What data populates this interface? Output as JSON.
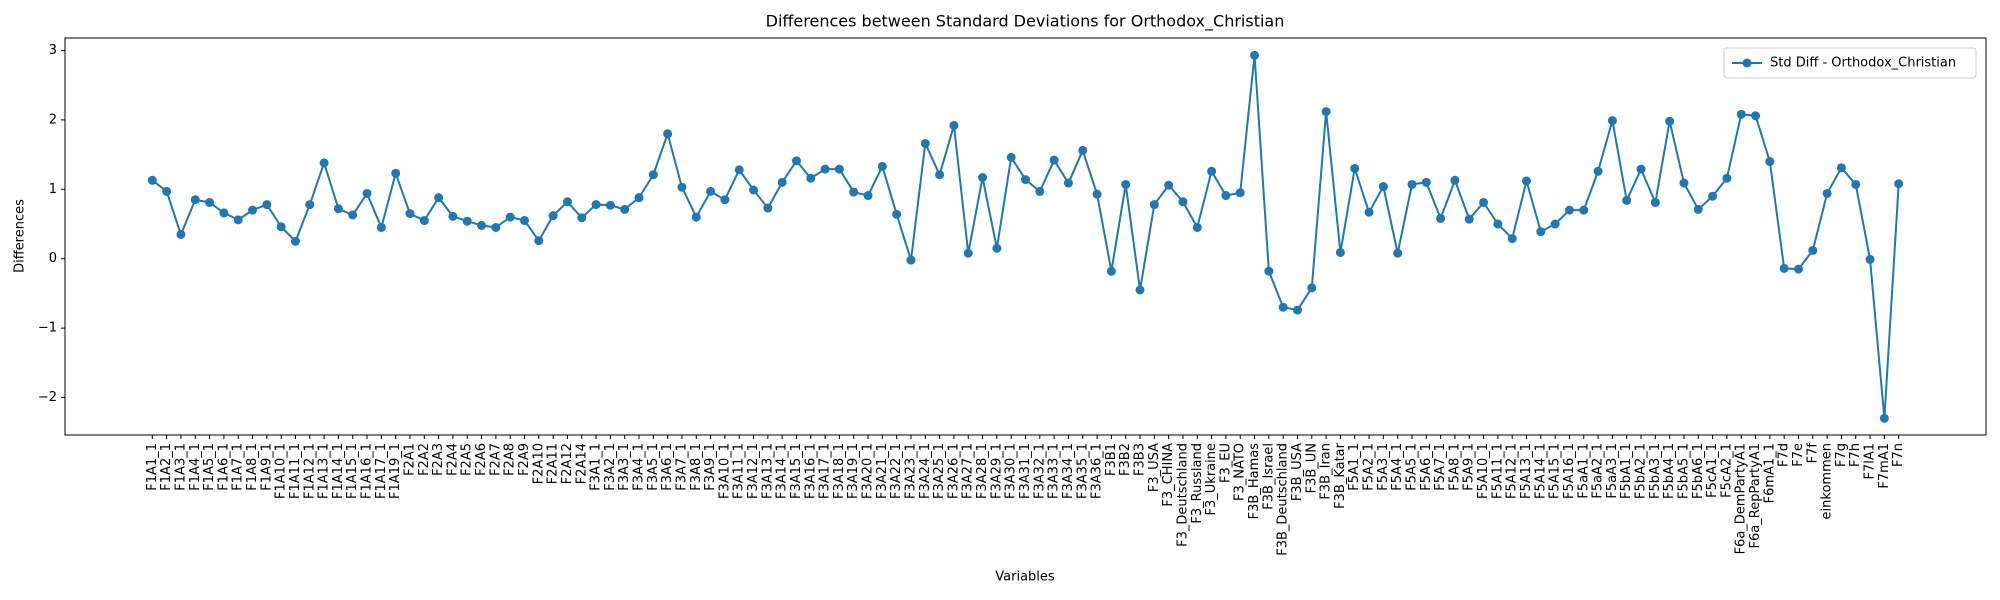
{
  "chart_data": {
    "type": "line",
    "title": "Differences between Standard Deviations for Orthodox_Christian",
    "xlabel": "Variables",
    "ylabel": "Differences",
    "categories": [
      "F1A1_1",
      "F1A2_1",
      "F1A3_1",
      "F1A4_1",
      "F1A5_1",
      "F1A6_1",
      "F1A7_1",
      "F1A8_1",
      "F1A9_1",
      "F1A10_1",
      "F1A11_1",
      "F1A12_1",
      "F1A13_1",
      "F1A14_1",
      "F1A15_1",
      "F1A16_1",
      "F1A17_1",
      "F1A19_1",
      "F2A1",
      "F2A2",
      "F2A3",
      "F2A4",
      "F2A5",
      "F2A6",
      "F2A7",
      "F2A8",
      "F2A9",
      "F2A10",
      "F2A11",
      "F2A12",
      "F2A14",
      "F3A1_1",
      "F3A2_1",
      "F3A3_1",
      "F3A4_1",
      "F3A5_1",
      "F3A6_1",
      "F3A7_1",
      "F3A8_1",
      "F3A9_1",
      "F3A10_1",
      "F3A11_1",
      "F3A12_1",
      "F3A13_1",
      "F3A14_1",
      "F3A15_1",
      "F3A16_1",
      "F3A17_1",
      "F3A18_1",
      "F3A19_1",
      "F3A20_1",
      "F3A21_1",
      "F3A22_1",
      "F3A23_1",
      "F3A24_1",
      "F3A25_1",
      "F3A26_1",
      "F3A27_1",
      "F3A28_1",
      "F3A29_1",
      "F3A30_1",
      "F3A31_1",
      "F3A32_1",
      "F3A33_1",
      "F3A34_1",
      "F3A35_1",
      "F3A36_1",
      "F3B1",
      "F3B2",
      "F3B3",
      "F3_USA",
      "F3_CHINA",
      "F3_Deutschland",
      "F3_Russland",
      "F3_Ukraine",
      "F3_EU",
      "F3_NATO",
      "F3B_Hamas",
      "F3B_Israel",
      "F3B_Deutschland",
      "F3B_USA",
      "F3B_UN",
      "F3B_Iran",
      "F3B_Katar",
      "F5A1_1",
      "F5A2_1",
      "F5A3_1",
      "F5A4_1",
      "F5A5_1",
      "F5A6_1",
      "F5A7_1",
      "F5A8_1",
      "F5A9_1",
      "F5A10_1",
      "F5A11_1",
      "F5A12_1",
      "F5A13_1",
      "F5A14_1",
      "F5A15_1",
      "F5A16_1",
      "F5aA1_1",
      "F5aA2_1",
      "F5aA3_1",
      "F5bA1_1",
      "F5bA2_1",
      "F5bA3_1",
      "F5bA4_1",
      "F5bA5_1",
      "F5bA6_1",
      "F5cA1_1",
      "F5cA2_1",
      "F6a_DemPartyA1",
      "F6a_RepPartyA1",
      "F6mA1_1",
      "F7d",
      "F7e",
      "F7f",
      "einkommen",
      "F7g",
      "F7h",
      "F7lA1",
      "F7mA1",
      "F7n"
    ],
    "series": [
      {
        "name": "Std Diff - Orthodox_Christian",
        "color": "#1f77b4",
        "values": [
          1.13,
          0.97,
          0.35,
          0.85,
          0.81,
          0.66,
          0.56,
          0.7,
          0.78,
          0.46,
          0.25,
          0.78,
          1.38,
          0.72,
          0.63,
          0.94,
          0.45,
          1.23,
          0.65,
          0.55,
          0.88,
          0.61,
          0.54,
          0.48,
          0.45,
          0.6,
          0.55,
          0.26,
          0.62,
          0.82,
          0.59,
          0.78,
          0.77,
          0.71,
          0.88,
          1.21,
          1.8,
          1.03,
          0.6,
          0.97,
          0.85,
          1.28,
          0.99,
          0.73,
          1.1,
          1.41,
          1.16,
          1.29,
          1.29,
          0.96,
          0.91,
          1.33,
          0.64,
          -0.02,
          1.66,
          1.21,
          1.92,
          0.08,
          1.17,
          0.15,
          1.46,
          1.14,
          0.97,
          1.42,
          1.09,
          1.56,
          0.93,
          -0.18,
          1.07,
          -0.45,
          0.78,
          1.06,
          0.82,
          0.45,
          1.26,
          0.91,
          0.95,
          2.93,
          -0.18,
          -0.7,
          -0.74,
          -0.42,
          2.12,
          0.09,
          1.3,
          0.67,
          1.04,
          0.08,
          1.07,
          1.1,
          0.58,
          1.13,
          0.57,
          0.81,
          0.5,
          0.29,
          1.12,
          0.39,
          0.5,
          0.7,
          0.7,
          1.26,
          1.99,
          0.84,
          1.29,
          0.81,
          1.98,
          1.09,
          0.71,
          0.9,
          1.16,
          2.08,
          2.06,
          1.4,
          -0.14,
          -0.15,
          0.12,
          0.94,
          1.31,
          1.07,
          -0.01,
          -2.3,
          1.08
        ]
      }
    ],
    "ylim": [
      -2.54,
      3.18
    ],
    "yticks": [
      {
        "value": -2,
        "label": "−2"
      },
      {
        "value": -1,
        "label": "−1"
      },
      0,
      1,
      2,
      3
    ],
    "grid": false,
    "legend": "upper right"
  }
}
